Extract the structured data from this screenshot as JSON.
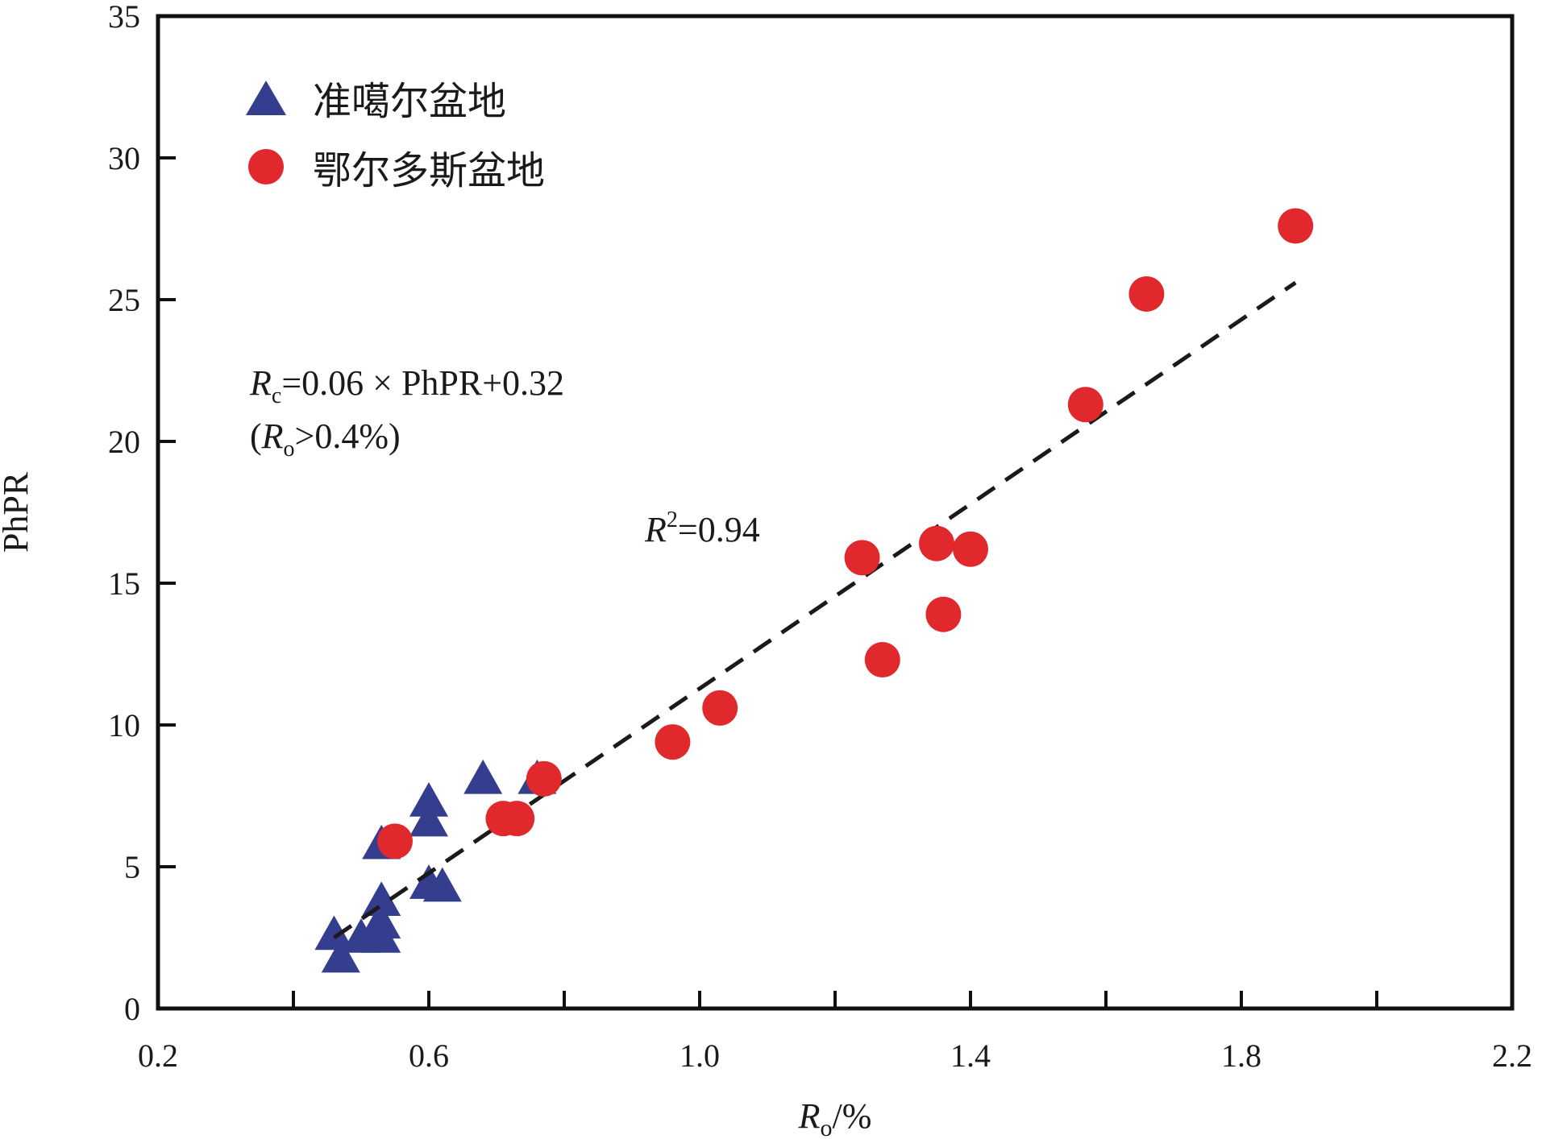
{
  "chart_data": {
    "type": "scatter",
    "xlabel": {
      "main": "R",
      "sub": "o",
      "suffix": "/%"
    },
    "ylabel": "PhPR",
    "xlim": [
      0.2,
      2.2
    ],
    "ylim": [
      0,
      35
    ],
    "x_ticks": [
      0.2,
      0.6,
      1.0,
      1.4,
      1.8,
      2.2
    ],
    "x_tick_labels": [
      "0.2",
      "0.6",
      "1.0",
      "1.4",
      "1.8",
      "2.2"
    ],
    "x_minor_ticks": [
      0.4,
      0.8,
      1.2,
      1.6,
      2.0
    ],
    "y_ticks": [
      0,
      5,
      10,
      15,
      20,
      25,
      30,
      35
    ],
    "y_tick_labels": [
      "0",
      "5",
      "10",
      "15",
      "20",
      "25",
      "30",
      "35"
    ],
    "grid": false,
    "legend_position": "top-left",
    "series": [
      {
        "name": "准噶尔盆地",
        "marker": "triangle",
        "color": "#353d8f",
        "points": [
          [
            0.46,
            2.6
          ],
          [
            0.47,
            1.8
          ],
          [
            0.5,
            2.5
          ],
          [
            0.52,
            2.7
          ],
          [
            0.53,
            2.5
          ],
          [
            0.53,
            3.0
          ],
          [
            0.53,
            3.8
          ],
          [
            0.53,
            5.8
          ],
          [
            0.6,
            7.3
          ],
          [
            0.6,
            6.6
          ],
          [
            0.6,
            4.4
          ],
          [
            0.62,
            4.3
          ],
          [
            0.68,
            8.1
          ],
          [
            0.76,
            8.1
          ]
        ]
      },
      {
        "name": "鄂尔多斯盆地",
        "marker": "circle",
        "color": "#e0282d",
        "points": [
          [
            0.55,
            5.9
          ],
          [
            0.71,
            6.7
          ],
          [
            0.73,
            6.7
          ],
          [
            0.77,
            8.1
          ],
          [
            0.96,
            9.4
          ],
          [
            1.03,
            10.6
          ],
          [
            1.24,
            15.9
          ],
          [
            1.27,
            12.3
          ],
          [
            1.35,
            16.4
          ],
          [
            1.36,
            13.9
          ],
          [
            1.4,
            16.2
          ],
          [
            1.57,
            21.3
          ],
          [
            1.66,
            25.2
          ],
          [
            1.88,
            27.6
          ]
        ]
      }
    ],
    "trendline": {
      "style": "dashed",
      "color": "#1a1a1a",
      "x": [
        0.46,
        1.88
      ],
      "y": [
        2.5,
        25.6
      ]
    },
    "annotations": {
      "equation": {
        "r": "R",
        "sub": "c",
        "text": "=0.06 × PhPR+0.32"
      },
      "condition": {
        "open": "(",
        "r": "R",
        "sub": "o",
        "text": ">0.4%)"
      },
      "r_squared": {
        "r": "R",
        "sup": "2",
        "text": "=0.94"
      }
    }
  }
}
